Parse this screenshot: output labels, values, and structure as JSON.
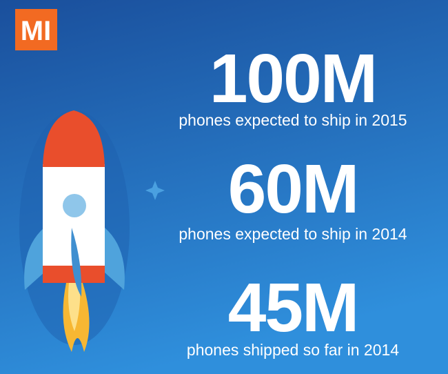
{
  "logo": "MI",
  "stats": [
    {
      "value": "100M",
      "caption": "phones expected to ship in 2015"
    },
    {
      "value": "60M",
      "caption": "phones expected to ship in 2014"
    },
    {
      "value": "45M",
      "caption": "phones shipped so far in 2014"
    }
  ]
}
